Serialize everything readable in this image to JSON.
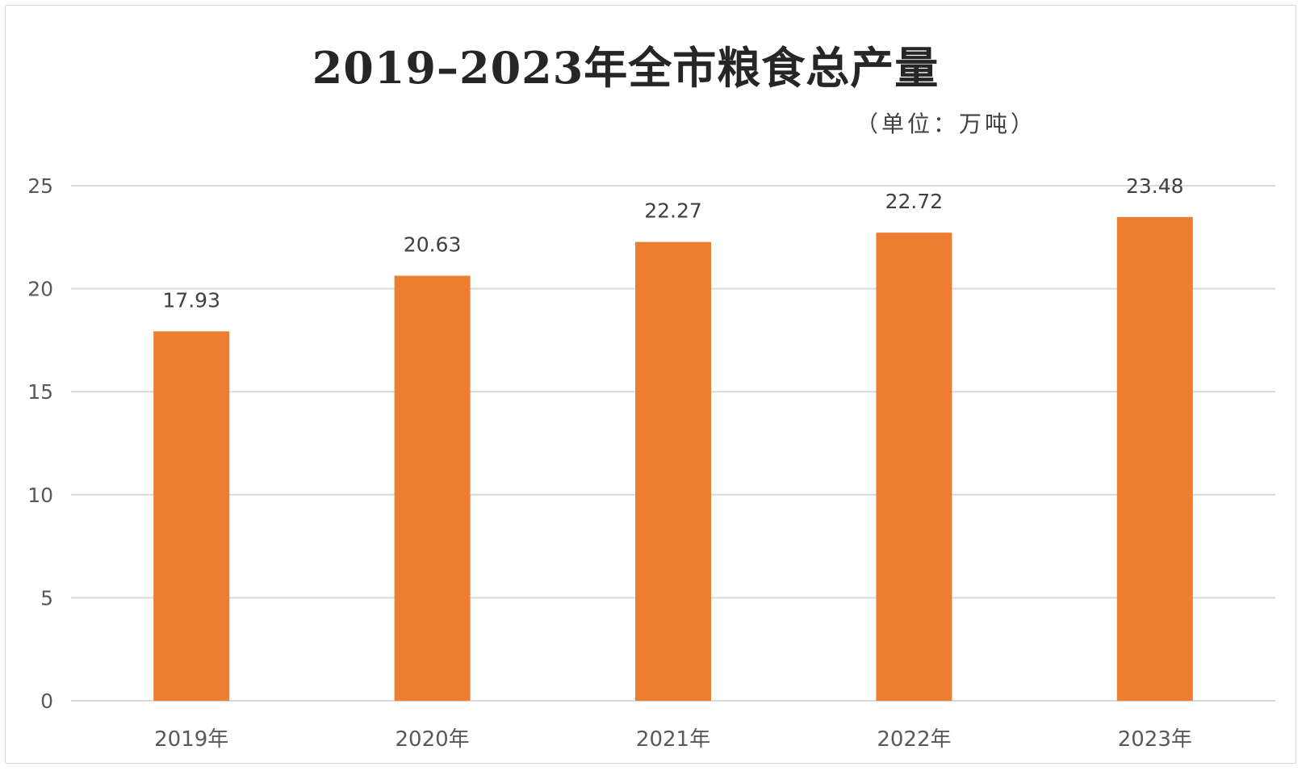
{
  "chart_data": {
    "type": "bar",
    "title": "2019–2023年全市粮食总产量",
    "unit_note": "（单位：万吨）",
    "categories": [
      "2019年",
      "2020年",
      "2021年",
      "2022年",
      "2023年"
    ],
    "values": [
      17.93,
      20.63,
      22.27,
      22.72,
      23.48
    ],
    "data_labels": [
      "17.93",
      "20.63",
      "22.27",
      "22.72",
      "23.48"
    ],
    "yticks": [
      0,
      5,
      10,
      15,
      20,
      25
    ],
    "ylim": [
      0,
      25
    ],
    "grid": true,
    "legend": "none",
    "bar_color": "#ed7d31",
    "grid_color": "#d9d9d9"
  }
}
